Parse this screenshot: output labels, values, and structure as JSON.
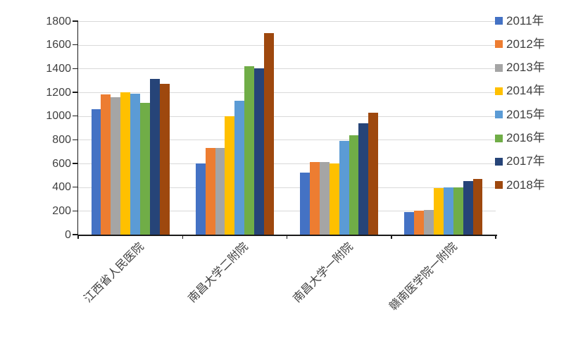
{
  "chart_data": {
    "type": "bar",
    "title": "",
    "xlabel": "",
    "ylabel": "",
    "categories": [
      "江西省人民医院",
      "南昌大学二附院",
      "南昌大学一附院",
      "赣南医学院一附院"
    ],
    "series": [
      {
        "name": "2011年",
        "color": "#4472C4",
        "values": [
          1060,
          600,
          520,
          190
        ]
      },
      {
        "name": "2012年",
        "color": "#ED7D31",
        "values": [
          1180,
          730,
          610,
          200
        ]
      },
      {
        "name": "2013年",
        "color": "#A5A5A5",
        "values": [
          1160,
          730,
          610,
          210
        ]
      },
      {
        "name": "2014年",
        "color": "#FFC000",
        "values": [
          1200,
          1000,
          600,
          390
        ]
      },
      {
        "name": "2015年",
        "color": "#5B9BD5",
        "values": [
          1190,
          1130,
          790,
          400
        ]
      },
      {
        "name": "2016年",
        "color": "#70AD47",
        "values": [
          1110,
          1420,
          840,
          400
        ]
      },
      {
        "name": "2017年",
        "color": "#264478",
        "values": [
          1310,
          1400,
          940,
          450
        ]
      },
      {
        "name": "2018年",
        "color": "#9E480E",
        "values": [
          1270,
          1700,
          1030,
          470
        ]
      }
    ],
    "y_axis": {
      "min": 0,
      "max": 1800,
      "step": 200,
      "tick_labels": [
        "0",
        "200",
        "400",
        "600",
        "800",
        "1000",
        "1200",
        "1400",
        "1600",
        "1800"
      ]
    },
    "legend": {
      "position": "right",
      "entries": [
        "2011年",
        "2012年",
        "2013年",
        "2014年",
        "2015年",
        "2016年",
        "2017年",
        "2018年"
      ]
    },
    "grid": true,
    "colors": {
      "background": "#FFFFFF",
      "gridline": "#D9D9D9",
      "axis": "#1A1A1A",
      "text": "#404040"
    }
  }
}
